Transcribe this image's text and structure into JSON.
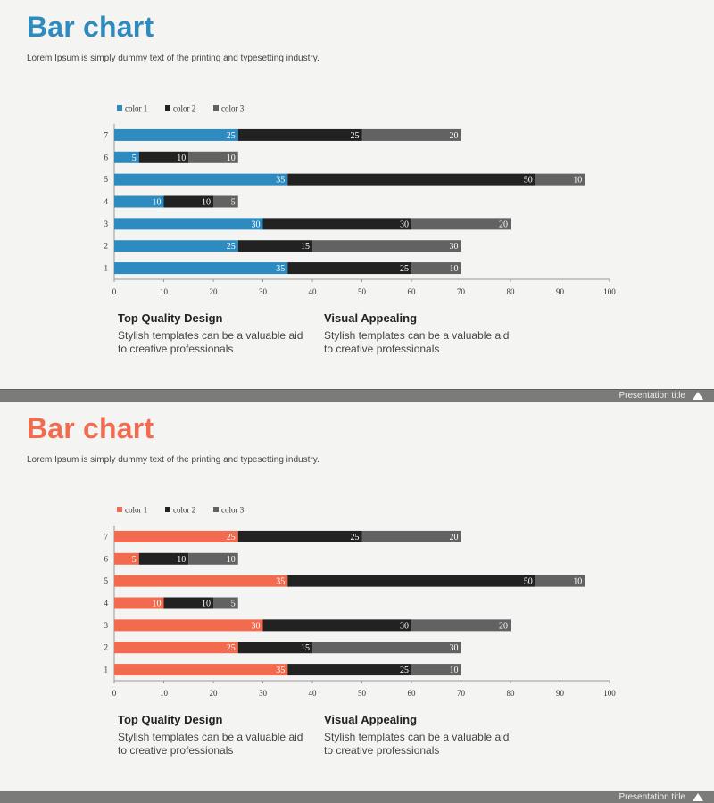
{
  "slides": [
    {
      "title": "Bar chart",
      "subtitle": "Lorem Ipsum  is simply dummy text of the printing and typesetting industry.",
      "accent": "#2e8bc0",
      "footer": "Presentation title",
      "features": [
        {
          "title": "Top Quality Design",
          "text": "Stylish templates can be a valuable aid to creative professionals"
        },
        {
          "title": "Visual Appealing",
          "text": "Stylish templates can be a valuable aid to creative professionals"
        }
      ]
    },
    {
      "title": "Bar chart",
      "subtitle": "Lorem Ipsum  is simply dummy text of the printing and typesetting industry.",
      "accent": "#f26b4f",
      "footer": "Presentation title",
      "features": [
        {
          "title": "Top Quality Design",
          "text": "Stylish templates can be a valuable aid to creative professionals"
        },
        {
          "title": "Visual Appealing",
          "text": "Stylish templates can be a valuable aid to creative professionals"
        }
      ]
    }
  ],
  "chart_data": [
    {
      "type": "bar",
      "orientation": "horizontal",
      "stacked": true,
      "categories": [
        "1",
        "2",
        "3",
        "4",
        "5",
        "6",
        "7"
      ],
      "series": [
        {
          "name": "color 1",
          "color": "#2e8bc0",
          "values": [
            35,
            25,
            30,
            10,
            35,
            5,
            25
          ]
        },
        {
          "name": "color 2",
          "color": "#222222",
          "values": [
            25,
            15,
            30,
            10,
            50,
            10,
            25
          ]
        },
        {
          "name": "color 3",
          "color": "#626262",
          "values": [
            10,
            30,
            20,
            5,
            10,
            10,
            20
          ]
        }
      ],
      "xlim": [
        0,
        100
      ],
      "xticks": [
        "0",
        "10",
        "20",
        "30",
        "40",
        "50",
        "60",
        "70",
        "80",
        "90",
        "100"
      ],
      "legend": "top-left",
      "grid": false
    },
    {
      "type": "bar",
      "orientation": "horizontal",
      "stacked": true,
      "categories": [
        "1",
        "2",
        "3",
        "4",
        "5",
        "6",
        "7"
      ],
      "series": [
        {
          "name": "color 1",
          "color": "#f26b4f",
          "values": [
            35,
            25,
            30,
            10,
            35,
            5,
            25
          ]
        },
        {
          "name": "color 2",
          "color": "#222222",
          "values": [
            25,
            15,
            30,
            10,
            50,
            10,
            25
          ]
        },
        {
          "name": "color 3",
          "color": "#626262",
          "values": [
            10,
            30,
            20,
            5,
            10,
            10,
            20
          ]
        }
      ],
      "xlim": [
        0,
        100
      ],
      "xticks": [
        "0",
        "10",
        "20",
        "30",
        "40",
        "50",
        "60",
        "70",
        "80",
        "90",
        "100"
      ],
      "legend": "top-left",
      "grid": false
    }
  ]
}
